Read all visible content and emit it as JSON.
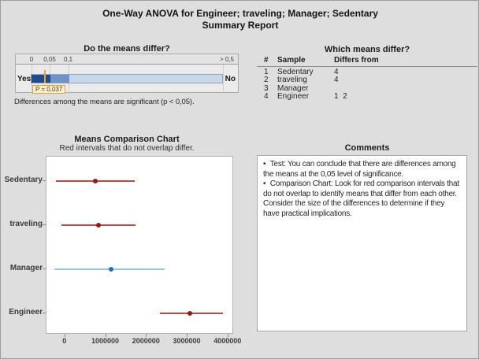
{
  "window": {
    "title_line1": "One-Way ANOVA for Engineer; traveling; Manager; Sedentary",
    "title_line2": "Summary Report"
  },
  "gauge_panel": {
    "title": "Do the means differ?",
    "tick_labels": [
      "0",
      "0,05",
      "0,1",
      "> 0,5"
    ],
    "yes_label": "Yes",
    "no_label": "No",
    "p_value": 0.037,
    "p_label": "P = 0,037",
    "caption": "Differences among the means are significant (p < 0,05).",
    "colors": {
      "significant": "#1f4a8c",
      "marginal": "#6f93c8",
      "not_significant": "#c7d7ec",
      "marker": "#e8a33d"
    }
  },
  "table_panel": {
    "title": "Which means differ?",
    "headers": [
      "#",
      "Sample",
      "Differs from"
    ],
    "rows": [
      {
        "num": "1",
        "sample": "Sedentary",
        "differs": "4"
      },
      {
        "num": "2",
        "sample": "traveling",
        "differs": "4"
      },
      {
        "num": "3",
        "sample": "Manager",
        "differs": ""
      },
      {
        "num": "4",
        "sample": "Engineer",
        "differs": "1  2"
      }
    ]
  },
  "chart_panel": {
    "title": "Means Comparison Chart",
    "subtitle": "Red intervals that do not overlap differ."
  },
  "chart_data": {
    "type": "interval",
    "title": "Means Comparison Chart",
    "subtitle": "Red intervals that do not overlap differ.",
    "categories": [
      "Sedentary",
      "traveling",
      "Manager",
      "Engineer"
    ],
    "series": [
      {
        "name": "Sedentary",
        "low": -210000,
        "mean": 760000,
        "high": 1720000,
        "color": "red"
      },
      {
        "name": "traveling",
        "low": -80000,
        "mean": 840000,
        "high": 1740000,
        "color": "red"
      },
      {
        "name": "Manager",
        "low": -250000,
        "mean": 1140000,
        "high": 2460000,
        "color": "blue"
      },
      {
        "name": "Engineer",
        "low": 2340000,
        "mean": 3080000,
        "high": 3880000,
        "color": "red"
      }
    ],
    "x_ticks": [
      0,
      1000000,
      2000000,
      3000000,
      4000000
    ],
    "x_tick_labels": [
      "0",
      "1000000",
      "2000000",
      "3000000",
      "4000000"
    ],
    "xlim": [
      -460000,
      4140000
    ],
    "grid": false,
    "legend": false,
    "colors": {
      "red_line": "#bf4a43",
      "red_dot": "#8e1b16",
      "blue_line": "#9cc3e5",
      "blue_dot": "#2b6cb5"
    }
  },
  "comments_panel": {
    "title": "Comments",
    "bullet_char": "•",
    "bullets": [
      "Test: You can conclude that there are differences among the means at the 0,05 level of significance.",
      "Comparison Chart: Look for red comparison intervals that do not overlap to identify means that differ from each other. Consider the size of the differences to determine if they have practical implications."
    ]
  }
}
